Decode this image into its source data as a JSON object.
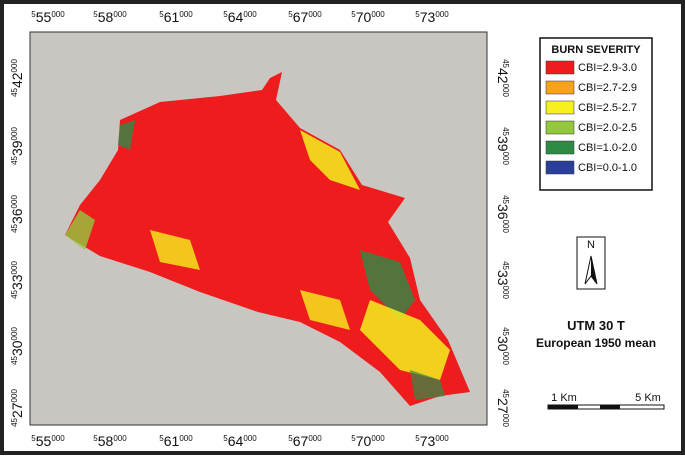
{
  "map": {
    "top_axis": [
      {
        "sup": "5",
        "main": "55",
        "end": "000"
      },
      {
        "sup": "5",
        "main": "58",
        "end": "000"
      },
      {
        "sup": "5",
        "main": "61",
        "end": "000"
      },
      {
        "sup": "5",
        "main": "64",
        "end": "000"
      },
      {
        "sup": "5",
        "main": "67",
        "end": "000"
      },
      {
        "sup": "5",
        "main": "70",
        "end": "000"
      },
      {
        "sup": "5",
        "main": "73",
        "end": "000"
      }
    ],
    "bottom_axis": [
      {
        "sup": "5",
        "main": "55",
        "end": "000"
      },
      {
        "sup": "5",
        "main": "58",
        "end": "000"
      },
      {
        "sup": "5",
        "main": "61",
        "end": "000"
      },
      {
        "sup": "5",
        "main": "64",
        "end": "000"
      },
      {
        "sup": "5",
        "main": "67",
        "end": "000"
      },
      {
        "sup": "5",
        "main": "70",
        "end": "000"
      },
      {
        "sup": "5",
        "main": "73",
        "end": "000"
      }
    ],
    "left_axis": [
      {
        "sup": "45",
        "main": "42",
        "end": "000"
      },
      {
        "sup": "45",
        "main": "39",
        "end": "000"
      },
      {
        "sup": "45",
        "main": "36",
        "end": "000"
      },
      {
        "sup": "45",
        "main": "33",
        "end": "000"
      },
      {
        "sup": "45",
        "main": "30",
        "end": "000"
      },
      {
        "sup": "45",
        "main": "27",
        "end": "000"
      }
    ],
    "right_axis": [
      {
        "sup": "45",
        "main": "42",
        "end": "000"
      },
      {
        "sup": "45",
        "main": "39",
        "end": "000"
      },
      {
        "sup": "45",
        "main": "36",
        "end": "000"
      },
      {
        "sup": "45",
        "main": "33",
        "end": "000"
      },
      {
        "sup": "45",
        "main": "30",
        "end": "000"
      },
      {
        "sup": "45",
        "main": "27",
        "end": "000"
      }
    ]
  },
  "legend": {
    "title": "BURN SEVERITY",
    "items": [
      {
        "label": "CBI=2.9-3.0",
        "color": "#ee1c1c"
      },
      {
        "label": "CBI=2.7-2.9",
        "color": "#f7a21b"
      },
      {
        "label": "CBI=2.5-2.7",
        "color": "#f5f01e"
      },
      {
        "label": "CBI=2.0-2.5",
        "color": "#93c83e"
      },
      {
        "label": "CBI=1.0-2.0",
        "color": "#2e8b46"
      },
      {
        "label": "CBI=0.0-1.0",
        "color": "#2a3f9a"
      }
    ]
  },
  "north_arrow": "N",
  "projection": {
    "zone": "UTM 30 T",
    "datum": "European 1950 mean"
  },
  "scale_bar": {
    "left": "1 Km",
    "right": "5 Km"
  }
}
